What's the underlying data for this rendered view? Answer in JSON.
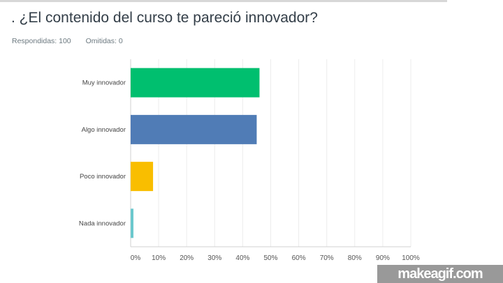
{
  "question": {
    "title": ". ¿El contenido del curso te pareció innovador?",
    "answered": "Respondidas: 100",
    "skipped": "Omitidas: 0"
  },
  "chart_data": {
    "type": "bar",
    "orientation": "horizontal",
    "categories": [
      "Muy innovador",
      "Algo innovador",
      "Poco innovador",
      "Nada innovador"
    ],
    "values": [
      46,
      45,
      8,
      1
    ],
    "colors": [
      "#00bf6f",
      "#507cb6",
      "#f9be00",
      "#6bc8cd"
    ],
    "xlim": [
      0,
      100
    ],
    "x_ticks": [
      "0%",
      "10%",
      "20%",
      "30%",
      "40%",
      "50%",
      "60%",
      "70%",
      "80%",
      "90%",
      "100%"
    ],
    "grid": true,
    "unit": "%"
  },
  "watermark": "makeagif.com"
}
